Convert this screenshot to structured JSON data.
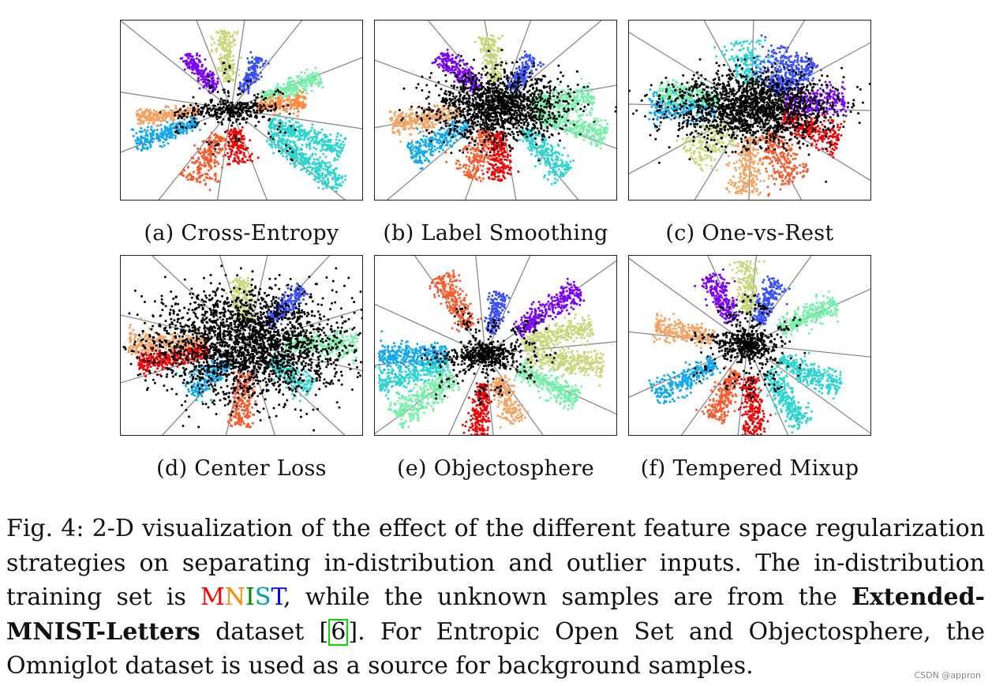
{
  "colors": {
    "classes": [
      "#7a00ff",
      "#3a50ff",
      "#12a8ee",
      "#2dd4cf",
      "#74f0a8",
      "#c8d67c",
      "#f4a262",
      "#fa5a2c",
      "#ee0000",
      "#ff8a40"
    ],
    "unknown": "#000000",
    "mnist_M": "#ff0000",
    "mnist_N": "#ff8c00",
    "mnist_I": "#008800",
    "mnist_S": "#00a0a0",
    "mnist_T": "#0000ff"
  },
  "panels": [
    {
      "id": "a",
      "label": "(a) Cross-Entropy"
    },
    {
      "id": "b",
      "label": "(b) Label Smoothing"
    },
    {
      "id": "c",
      "label": "(c) One-vs-Rest"
    },
    {
      "id": "d",
      "label": "(d) Center Loss"
    },
    {
      "id": "e",
      "label": "(e) Objectosphere"
    },
    {
      "id": "f",
      "label": "(f) Tempered Mixup"
    }
  ],
  "caption": {
    "fig": "Fig. 4:",
    "text1": " 2-D visualization of the effect of the different feature space regularization strategies on separating in-distribution and outlier inputs. The in-distribution training set is ",
    "mnist": [
      "M",
      "N",
      "I",
      "S",
      "T"
    ],
    "text2": ", while the unknown samples are from the ",
    "bold": "Extended-MNIST-Letters",
    "text3": " dataset [",
    "ref": "6",
    "text4": "]. For Entropic Open Set and Objectosphere, the Omniglot dataset is used as a source for background samples."
  },
  "watermark": "CSDN @appron"
}
